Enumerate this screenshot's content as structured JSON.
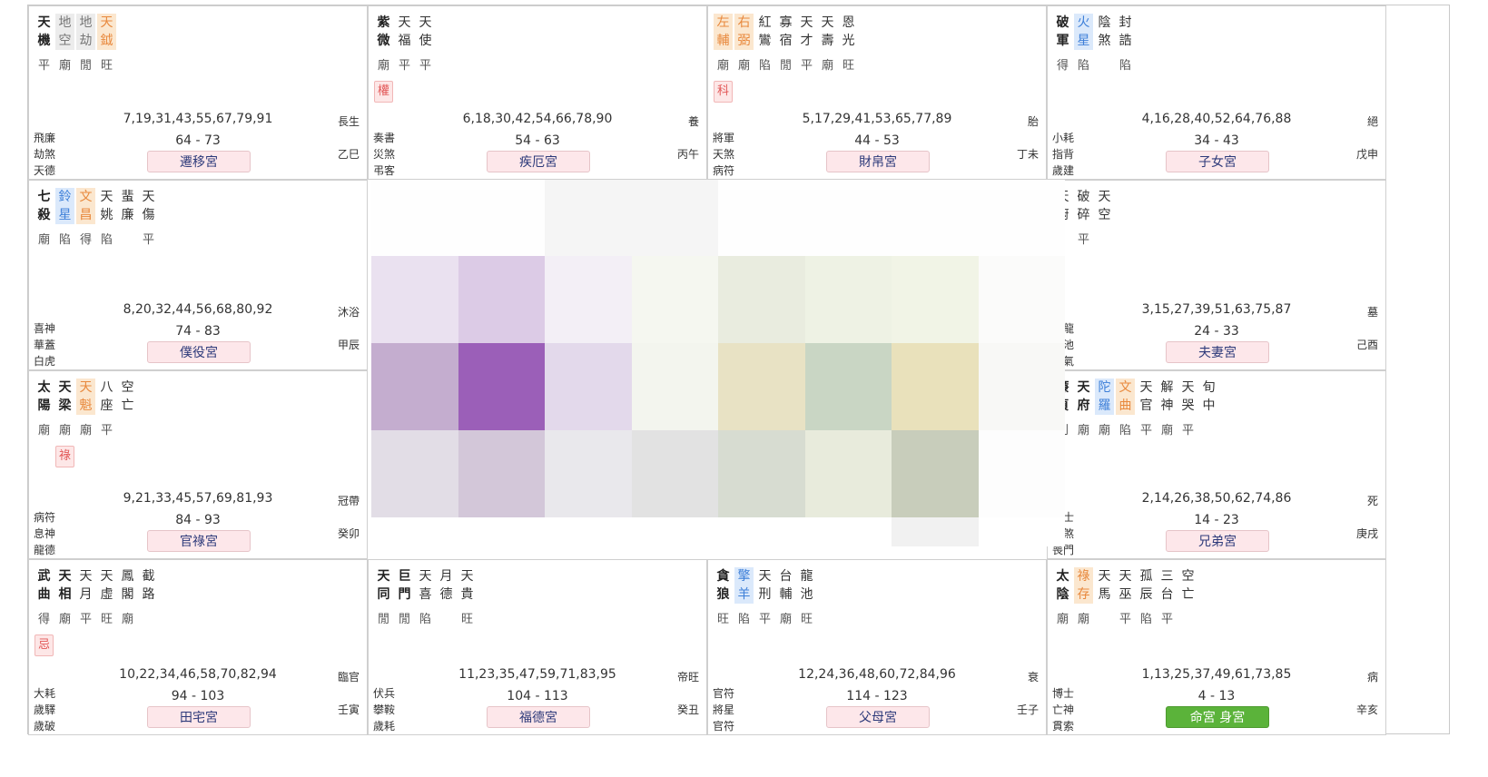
{
  "palaces": [
    {
      "stars": [
        {
          "name": "天機",
          "type": "major",
          "bright": "平"
        },
        {
          "name": "地空",
          "type": "hl-gray",
          "bright": "廟"
        },
        {
          "name": "地劫",
          "type": "hl-gray",
          "bright": "閒"
        },
        {
          "name": "天鉞",
          "type": "hl-orange",
          "bright": "旺"
        }
      ],
      "mutagen": "",
      "ages": "7,19,31,43,55,67,79,91",
      "changsheng": "長生",
      "left": [
        "飛廉",
        "劫煞",
        "天德"
      ],
      "range": "64 - 73",
      "stem": "乙巳",
      "palace": "遷移宮"
    },
    {
      "stars": [
        {
          "name": "紫微",
          "type": "major",
          "bright": "廟"
        },
        {
          "name": "天福",
          "type": "minor",
          "bright": "平"
        },
        {
          "name": "天使",
          "type": "minor",
          "bright": "平"
        }
      ],
      "mutagen": "權",
      "ages": "6,18,30,42,54,66,78,90",
      "changsheng": "養",
      "left": [
        "奏書",
        "災煞",
        "弔客"
      ],
      "range": "54 - 63",
      "stem": "丙午",
      "palace": "疾厄宮"
    },
    {
      "stars": [
        {
          "name": "左輔",
          "type": "hl-orange",
          "bright": "廟"
        },
        {
          "name": "右弼",
          "type": "hl-orange",
          "bright": "廟"
        },
        {
          "name": "紅鸞",
          "type": "minor",
          "bright": "陷"
        },
        {
          "name": "寡宿",
          "type": "minor",
          "bright": "閒"
        },
        {
          "name": "天才",
          "type": "minor",
          "bright": "平"
        },
        {
          "name": "天壽",
          "type": "minor",
          "bright": "廟"
        },
        {
          "name": "恩光",
          "type": "minor",
          "bright": "旺"
        }
      ],
      "mutagen": "科",
      "ages": "5,17,29,41,53,65,77,89",
      "changsheng": "胎",
      "left": [
        "將軍",
        "天煞",
        "病符"
      ],
      "range": "44 - 53",
      "stem": "丁未",
      "palace": "財帛宮"
    },
    {
      "stars": [
        {
          "name": "破軍",
          "type": "major",
          "bright": "得"
        },
        {
          "name": "火星",
          "type": "hl-blue",
          "bright": "陷"
        },
        {
          "name": "陰煞",
          "type": "minor",
          "bright": ""
        },
        {
          "name": "封誥",
          "type": "minor",
          "bright": "陷"
        }
      ],
      "mutagen": "",
      "ages": "4,16,28,40,52,64,76,88",
      "changsheng": "絕",
      "left": [
        "小耗",
        "指背",
        "歲建"
      ],
      "range": "34 - 43",
      "stem": "戊申",
      "palace": "子女宮"
    },
    {
      "stars": [
        {
          "name": "七殺",
          "type": "major",
          "bright": "廟"
        },
        {
          "name": "鈴星",
          "type": "hl-blue",
          "bright": "陷"
        },
        {
          "name": "文昌",
          "type": "hl-orange",
          "bright": "得"
        },
        {
          "name": "天姚",
          "type": "minor",
          "bright": "陷"
        },
        {
          "name": "蜚廉",
          "type": "minor",
          "bright": ""
        },
        {
          "name": "天傷",
          "type": "minor",
          "bright": "平"
        }
      ],
      "mutagen": "",
      "ages": "8,20,32,44,56,68,80,92",
      "changsheng": "沐浴",
      "left": [
        "喜神",
        "華蓋",
        "白虎"
      ],
      "range": "74 - 83",
      "stem": "甲辰",
      "palace": "僕役宮"
    },
    {
      "stars": [
        {
          "name": "天廚",
          "type": "minor",
          "bright": ""
        },
        {
          "name": "破碎",
          "type": "minor",
          "bright": "平"
        },
        {
          "name": "天空",
          "type": "minor",
          "bright": ""
        }
      ],
      "mutagen": "",
      "ages": "3,15,27,39,51,63,75,87",
      "changsheng": "墓",
      "left": [
        "青龍",
        "咸池",
        "晦氣"
      ],
      "range": "24 - 33",
      "stem": "己酉",
      "palace": "夫妻宮"
    },
    {
      "stars": [
        {
          "name": "太陽",
          "type": "major",
          "bright": "廟"
        },
        {
          "name": "天梁",
          "type": "major",
          "bright": "廟"
        },
        {
          "name": "天魁",
          "type": "hl-orange",
          "bright": "廟"
        },
        {
          "name": "八座",
          "type": "minor",
          "bright": "平"
        },
        {
          "name": "空亡",
          "type": "minor",
          "bright": ""
        }
      ],
      "mutagen": "祿",
      "ages": "9,21,33,45,57,69,81,93",
      "changsheng": "冠帶",
      "left": [
        "病符",
        "息神",
        "龍德"
      ],
      "range": "84 - 93",
      "stem": "癸卯",
      "palace": "官祿宮"
    },
    {
      "stars": [
        {
          "name": "廉貞",
          "type": "major",
          "bright": "利"
        },
        {
          "name": "天府",
          "type": "major",
          "bright": "廟"
        },
        {
          "name": "陀羅",
          "type": "hl-blue",
          "bright": "廟"
        },
        {
          "name": "文曲",
          "type": "hl-orange",
          "bright": "陷"
        },
        {
          "name": "天官",
          "type": "minor",
          "bright": "平"
        },
        {
          "name": "解神",
          "type": "minor",
          "bright": "廟"
        },
        {
          "name": "天哭",
          "type": "minor",
          "bright": "平"
        },
        {
          "name": "旬中",
          "type": "minor",
          "bright": ""
        }
      ],
      "mutagen": "",
      "ages": "2,14,26,38,50,62,74,86",
      "changsheng": "死",
      "left": [
        "力士",
        "月煞",
        "喪門"
      ],
      "range": "14 - 23",
      "stem": "庚戌",
      "palace": "兄弟宮"
    },
    {
      "stars": [
        {
          "name": "武曲",
          "type": "major",
          "bright": "得"
        },
        {
          "name": "天相",
          "type": "major",
          "bright": "廟"
        },
        {
          "name": "天月",
          "type": "minor",
          "bright": "平"
        },
        {
          "name": "天虛",
          "type": "minor",
          "bright": "旺"
        },
        {
          "name": "鳳閣",
          "type": "minor",
          "bright": "廟"
        },
        {
          "name": "截路",
          "type": "minor",
          "bright": ""
        }
      ],
      "mutagen": "忌",
      "ages": "10,22,34,46,58,70,82,94",
      "changsheng": "臨官",
      "left": [
        "大耗",
        "歲驛",
        "歲破"
      ],
      "range": "94 - 103",
      "stem": "壬寅",
      "palace": "田宅宮"
    },
    {
      "stars": [
        {
          "name": "天同",
          "type": "major",
          "bright": "閒"
        },
        {
          "name": "巨門",
          "type": "major",
          "bright": "閒"
        },
        {
          "name": "天喜",
          "type": "minor",
          "bright": "陷"
        },
        {
          "name": "月德",
          "type": "minor",
          "bright": ""
        },
        {
          "name": "天貴",
          "type": "minor",
          "bright": "旺"
        }
      ],
      "mutagen": "",
      "ages": "11,23,35,47,59,71,83,95",
      "changsheng": "帝旺",
      "left": [
        "伏兵",
        "攀鞍",
        "歲耗"
      ],
      "range": "104 - 113",
      "stem": "癸丑",
      "palace": "福德宮"
    },
    {
      "stars": [
        {
          "name": "貪狼",
          "type": "major",
          "bright": "旺"
        },
        {
          "name": "擎羊",
          "type": "hl-blue",
          "bright": "陷"
        },
        {
          "name": "天刑",
          "type": "minor",
          "bright": "平"
        },
        {
          "name": "台輔",
          "type": "minor",
          "bright": "廟"
        },
        {
          "name": "龍池",
          "type": "minor",
          "bright": "旺"
        }
      ],
      "mutagen": "",
      "ages": "12,24,36,48,60,72,84,96",
      "changsheng": "衰",
      "left": [
        "官符",
        "將星",
        "官符"
      ],
      "range": "114 - 123",
      "stem": "壬子",
      "palace": "父母宮"
    },
    {
      "stars": [
        {
          "name": "太陰",
          "type": "major",
          "bright": "廟"
        },
        {
          "name": "祿存",
          "type": "hl-orange",
          "bright": "廟"
        },
        {
          "name": "天馬",
          "type": "minor",
          "bright": ""
        },
        {
          "name": "天巫",
          "type": "minor",
          "bright": "平"
        },
        {
          "name": "孤辰",
          "type": "minor",
          "bright": "陷"
        },
        {
          "name": "三台",
          "type": "minor",
          "bright": "平"
        },
        {
          "name": "空亡",
          "type": "minor",
          "bright": ""
        }
      ],
      "mutagen": "",
      "ages": "1,13,25,37,49,61,73,85",
      "changsheng": "病",
      "left": [
        "博士",
        "亡神",
        "貫索"
      ],
      "range": "4 - 13",
      "stem": "辛亥",
      "palace": "命宮 身宮",
      "life": true
    }
  ],
  "center_colors": {
    "row0": [
      "#fefefe",
      "#fefefe",
      "#f5f5f5",
      "#f5f5f5",
      "#fefefe",
      "#fefefe",
      "#fefefe",
      "#fefefe"
    ],
    "row1": [
      "#eae1f0",
      "#dccbe6",
      "#f3eff6",
      "#f5f7f0",
      "#e9ecdf",
      "#eef2e4",
      "#f1f4e6",
      "#fbfbfa"
    ],
    "row2": [
      "#c4adcf",
      "#9b5fb8",
      "#e3d9eb",
      "#f3f5ee",
      "#e8e2c4",
      "#c9d6c4",
      "#e9e1bb",
      "#f8f8f6"
    ],
    "row3": [
      "#e2dde6",
      "#d3c7d9",
      "#e9e8ec",
      "#e2e2e2",
      "#d7dcd1",
      "#e8ebdc",
      "#c8cdbb",
      "#fdfdfd"
    ],
    "row4": [
      "#ffffff",
      "#ffffff",
      "#ffffff",
      "#ffffff",
      "#ffffff",
      "#ffffff",
      "#f1f1f1",
      "#ffffff"
    ]
  }
}
